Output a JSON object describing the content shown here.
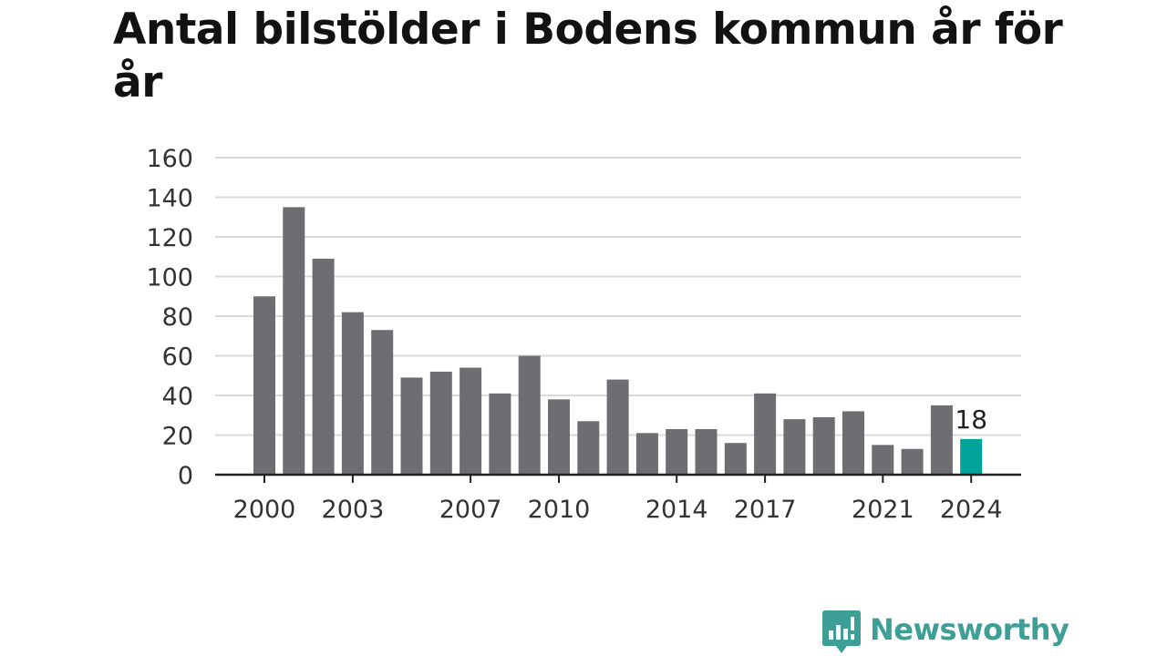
{
  "title": "Antal bilstölder i Bodens kommun år för år",
  "brand": {
    "name": "Newsworthy",
    "icon": "newsworthy-logo-icon",
    "color": "#3d9f96"
  },
  "colors": {
    "bar": "#6e6d72",
    "highlight": "#00a39a",
    "grid": "#dadada",
    "axis": "#222222"
  },
  "chart_data": {
    "type": "bar",
    "title": "Antal bilstölder i Bodens kommun år för år",
    "xlabel": "",
    "ylabel": "",
    "categories": [
      2000,
      2001,
      2002,
      2003,
      2004,
      2005,
      2006,
      2007,
      2008,
      2009,
      2010,
      2011,
      2012,
      2013,
      2014,
      2015,
      2016,
      2017,
      2018,
      2019,
      2020,
      2021,
      2022,
      2023,
      2024
    ],
    "values": [
      90,
      135,
      109,
      82,
      73,
      49,
      52,
      54,
      41,
      60,
      38,
      27,
      48,
      21,
      23,
      23,
      16,
      41,
      28,
      29,
      32,
      15,
      13,
      35,
      18
    ],
    "highlight": {
      "category": 2024,
      "value": 18,
      "label": "18"
    },
    "x_ticks": [
      2000,
      2003,
      2007,
      2010,
      2014,
      2017,
      2021,
      2024
    ],
    "y_ticks": [
      0,
      20,
      40,
      60,
      80,
      100,
      120,
      140,
      160
    ],
    "ylim": [
      0,
      160
    ],
    "grid": true,
    "legend": "none"
  }
}
